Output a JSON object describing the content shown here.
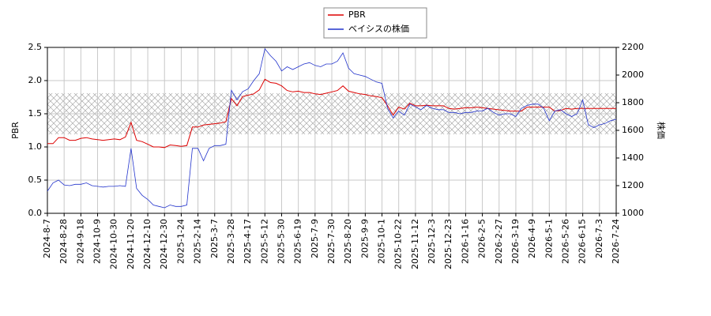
{
  "chart_data": {
    "type": "line",
    "categories": [
      "2024-8-7",
      null,
      null,
      "2024-8-28",
      null,
      null,
      "2024-9-18",
      null,
      null,
      "2024-10-9",
      null,
      null,
      "2024-10-30",
      null,
      null,
      "2024-11-20",
      null,
      null,
      "2024-12-10",
      null,
      null,
      "2024-12-30",
      null,
      null,
      "2025-1-24",
      null,
      null,
      "2025-2-14",
      null,
      null,
      "2025-3-7",
      null,
      null,
      "2025-3-28",
      null,
      null,
      "2025-4-17",
      null,
      null,
      "2025-5-12",
      null,
      null,
      "2025-5-30",
      null,
      null,
      "2025-6-19",
      null,
      null,
      "2025-7-9",
      null,
      null,
      "2025-7-30",
      null,
      null,
      "2025-8-20",
      null,
      null,
      "2025-9-9",
      null,
      null,
      "2025-10-1",
      null,
      null,
      "2025-10-22",
      null,
      null,
      "2025-11-12",
      null,
      null,
      "2025-12-3",
      null,
      null,
      "2025-12-23",
      null,
      null,
      "2026-1-16",
      null,
      null,
      "2026-2-5",
      null,
      null,
      "2026-2-27",
      null,
      null,
      "2026-3-19",
      null,
      null,
      "2026-4-9",
      null,
      null,
      "2026-5-1",
      null,
      null,
      "2026-5-26",
      null,
      null,
      "2026-6-15",
      null,
      null,
      "2026-7-3",
      null,
      null,
      "2026-7-24"
    ],
    "series": [
      {
        "name": "PBR",
        "color": "#dd0000",
        "values": [
          1.05,
          1.05,
          1.14,
          1.14,
          1.1,
          1.1,
          1.13,
          1.14,
          1.12,
          1.11,
          1.1,
          1.11,
          1.12,
          1.11,
          1.15,
          1.37,
          1.1,
          1.08,
          1.04,
          1.0,
          1.0,
          0.99,
          1.03,
          1.02,
          1.01,
          1.02,
          1.3,
          1.3,
          1.33,
          1.34,
          1.35,
          1.36,
          1.38,
          1.73,
          1.62,
          1.76,
          1.78,
          1.8,
          1.86,
          2.02,
          1.97,
          1.96,
          1.92,
          1.85,
          1.83,
          1.84,
          1.82,
          1.82,
          1.8,
          1.79,
          1.81,
          1.83,
          1.85,
          1.92,
          1.84,
          1.82,
          1.8,
          1.79,
          1.77,
          1.76,
          1.74,
          1.62,
          1.48,
          1.6,
          1.57,
          1.66,
          1.62,
          1.62,
          1.63,
          1.62,
          1.62,
          1.62,
          1.58,
          1.57,
          1.58,
          1.59,
          1.59,
          1.6,
          1.59,
          1.58,
          1.57,
          1.56,
          1.55,
          1.54,
          1.54,
          1.54,
          1.6,
          1.6,
          1.6,
          1.6,
          1.6,
          1.54,
          1.55,
          1.58,
          1.57,
          1.58,
          1.58,
          1.58,
          1.58,
          1.58,
          1.58,
          1.58,
          1.58
        ]
      },
      {
        "name": "ベイシスの株価",
        "color": "#2233cc",
        "axis": "y2",
        "values": [
          1160,
          1220,
          1240,
          1205,
          1200,
          1210,
          1210,
          1220,
          1200,
          1195,
          1190,
          1195,
          1195,
          1200,
          1195,
          1470,
          1180,
          1130,
          1100,
          1060,
          1050,
          1040,
          1060,
          1050,
          1050,
          1060,
          1470,
          1470,
          1380,
          1470,
          1490,
          1490,
          1500,
          1890,
          1820,
          1880,
          1900,
          1960,
          2010,
          2190,
          2140,
          2100,
          2030,
          2060,
          2040,
          2060,
          2080,
          2090,
          2070,
          2060,
          2080,
          2080,
          2100,
          2160,
          2050,
          2010,
          2000,
          1990,
          1970,
          1950,
          1940,
          1760,
          1690,
          1740,
          1710,
          1790,
          1770,
          1750,
          1780,
          1760,
          1750,
          1750,
          1730,
          1730,
          1720,
          1730,
          1730,
          1740,
          1740,
          1760,
          1730,
          1710,
          1720,
          1720,
          1700,
          1760,
          1780,
          1790,
          1790,
          1760,
          1670,
          1740,
          1750,
          1720,
          1700,
          1720,
          1820,
          1640,
          1620,
          1640,
          1650,
          1670,
          1680
        ]
      }
    ],
    "ylabel": "PBR",
    "y2label": "株価",
    "ylim": [
      0,
      2.5
    ],
    "yticks": [
      {
        "value": 0,
        "label": "0.0"
      },
      0.5,
      {
        "value": 1,
        "label": "1.0"
      },
      1.5,
      {
        "value": 2,
        "label": "2.0"
      },
      2.5
    ],
    "y2lim": [
      1000,
      2200
    ],
    "y2ticks": [
      1000,
      1200,
      1400,
      1600,
      1800,
      2000,
      2200
    ],
    "band": [
      1.19,
      1.81
    ],
    "grid": true,
    "legend": "top"
  }
}
